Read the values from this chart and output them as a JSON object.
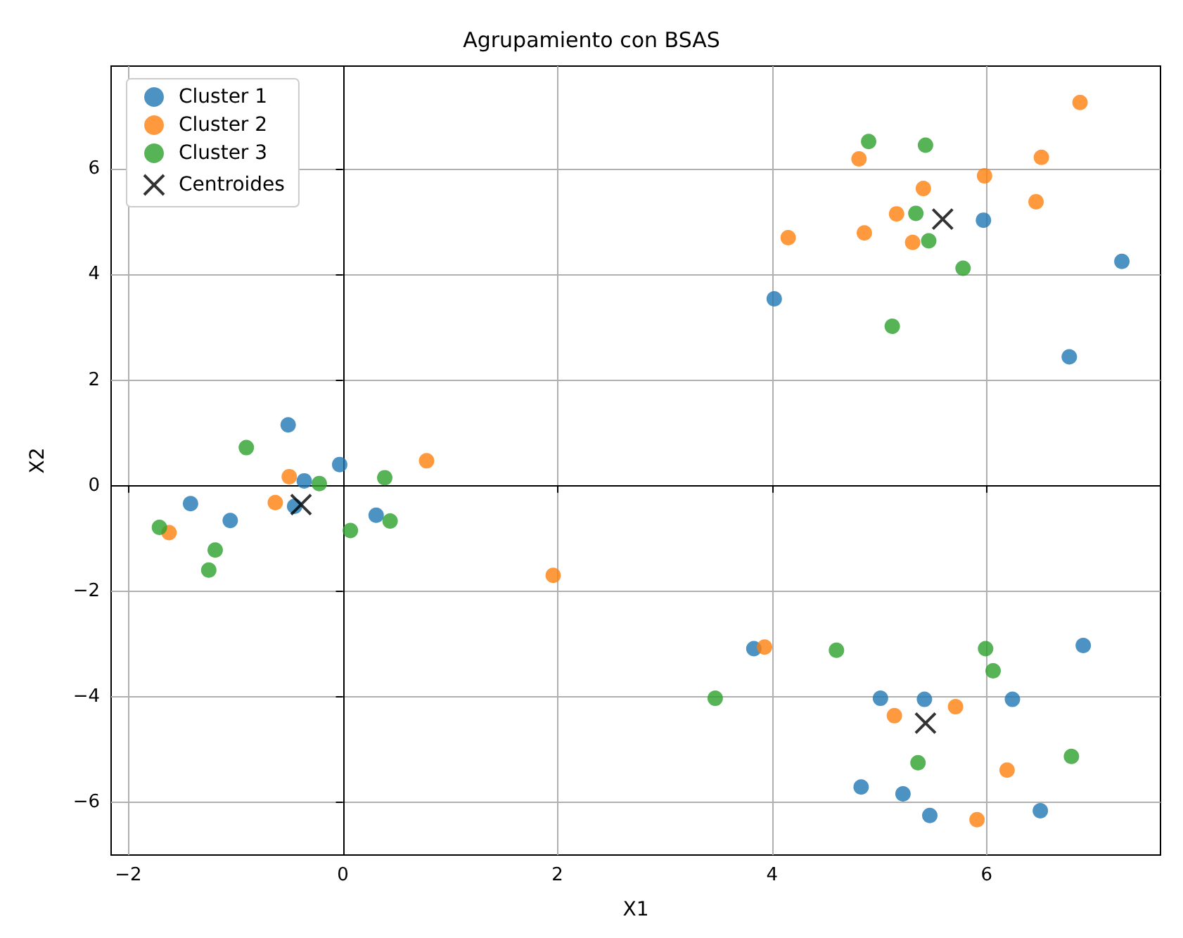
{
  "chart_data": {
    "type": "scatter",
    "title": "Agrupamiento con BSAS",
    "xlabel": "X1",
    "ylabel": "X2",
    "xlim": [
      -2.16,
      7.62
    ],
    "ylim": [
      -7.0,
      7.95
    ],
    "xticks": [
      -2,
      0,
      2,
      4,
      6
    ],
    "yticks": [
      -6,
      -4,
      -2,
      0,
      2,
      4,
      6
    ],
    "grid": true,
    "legend": "top left",
    "marker": "circle",
    "series": [
      {
        "name": "Cluster 1",
        "color": "#1f77b4",
        "x": [
          -0.51,
          -0.03,
          -0.36,
          -0.45,
          -1.42,
          -1.05,
          0.31,
          5.97,
          7.26,
          4.02,
          6.77,
          3.83,
          6.9,
          5.01,
          5.42,
          6.24,
          4.83,
          5.22,
          5.47,
          6.5
        ],
        "values": [
          1.15,
          0.4,
          0.09,
          -0.39,
          -0.34,
          -0.66,
          -0.56,
          5.03,
          4.25,
          3.54,
          2.44,
          -3.09,
          -3.03,
          -4.03,
          -4.05,
          -4.05,
          -5.71,
          -5.84,
          -6.25,
          -6.16
        ]
      },
      {
        "name": "Cluster 2",
        "color": "#ff7f0e",
        "x": [
          -0.5,
          -0.63,
          -1.62,
          0.78,
          1.96,
          6.87,
          6.51,
          4.81,
          5.98,
          5.41,
          6.46,
          5.16,
          4.15,
          4.86,
          5.31,
          3.93,
          5.14,
          5.71,
          6.19,
          5.91
        ],
        "values": [
          0.17,
          -0.32,
          -0.89,
          0.47,
          -1.7,
          7.26,
          6.22,
          6.19,
          5.87,
          5.63,
          5.38,
          5.15,
          4.7,
          4.79,
          4.61,
          -3.06,
          -4.36,
          -4.19,
          -5.39,
          -6.33
        ]
      },
      {
        "name": "Cluster 3",
        "color": "#2ca02c",
        "x": [
          -0.9,
          -0.22,
          -1.71,
          -1.19,
          -1.25,
          0.39,
          0.07,
          0.44,
          4.9,
          5.43,
          5.34,
          5.46,
          5.78,
          5.12,
          4.6,
          3.47,
          5.99,
          6.06,
          5.36,
          6.79
        ],
        "values": [
          0.72,
          0.04,
          -0.79,
          -1.22,
          -1.6,
          0.15,
          -0.85,
          -0.67,
          6.52,
          6.45,
          5.16,
          4.64,
          4.12,
          3.02,
          -3.12,
          -4.03,
          -3.09,
          -3.51,
          -5.25,
          -5.13
        ]
      },
      {
        "name": "Centroides",
        "color": "#000000",
        "marker": "cross",
        "x": [
          -0.39,
          5.59,
          5.43
        ],
        "values": [
          -0.36,
          5.05,
          -4.5
        ]
      }
    ]
  }
}
